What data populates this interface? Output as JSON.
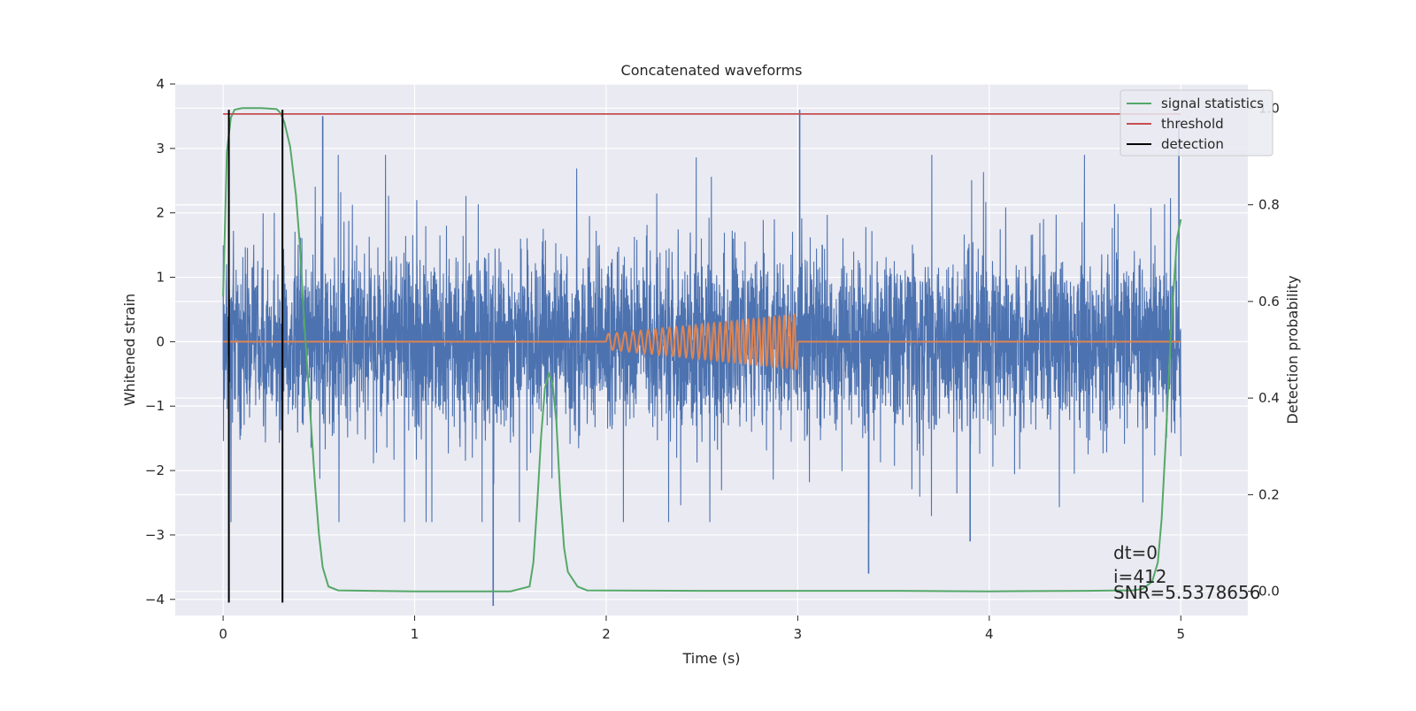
{
  "chart_data": {
    "type": "line",
    "title": "Concatenated waveforms",
    "xlabel": "Time (s)",
    "ylabel": "Whitened strain",
    "y2label": "Detection probability",
    "xlim": [
      -0.25,
      5.35
    ],
    "ylim": [
      -4.25,
      4.0
    ],
    "y2lim": [
      -0.05,
      1.05
    ],
    "xticks": [
      0,
      1,
      2,
      3,
      4,
      5
    ],
    "yticks": [
      -4,
      -3,
      -2,
      -1,
      0,
      1,
      2,
      3,
      4
    ],
    "y2ticks": [
      0.0,
      0.2,
      0.4,
      0.6,
      0.8,
      1.0
    ],
    "xtick_labels": [
      "0",
      "1",
      "2",
      "3",
      "4",
      "5"
    ],
    "ytick_labels": [
      "−4",
      "−3",
      "−2",
      "−1",
      "0",
      "1",
      "2",
      "3",
      "4"
    ],
    "y2tick_labels": [
      "0.0",
      "0.2",
      "0.4",
      "0.6",
      "0.8",
      "1.0"
    ],
    "grid": true,
    "legend_position": "top-right",
    "colors": {
      "noise": "#4c72b0",
      "template": "#dd8452",
      "signal_statistics": "#55a868",
      "threshold": "#c44e52",
      "detection": "#000000",
      "axes_bg": "#eaeaf2",
      "grid": "#ffffff"
    },
    "series": [
      {
        "name": "signal statistics",
        "axis": "right",
        "x": [
          0.0,
          0.02,
          0.04,
          0.06,
          0.1,
          0.2,
          0.28,
          0.3,
          0.32,
          0.35,
          0.38,
          0.4,
          0.42,
          0.45,
          0.48,
          0.5,
          0.52,
          0.55,
          0.6,
          1.0,
          1.5,
          1.6,
          1.62,
          1.64,
          1.66,
          1.68,
          1.7,
          1.72,
          1.74,
          1.76,
          1.78,
          1.8,
          1.85,
          1.9,
          2.5,
          3.0,
          3.5,
          4.0,
          4.5,
          4.75,
          4.8,
          4.85,
          4.88,
          4.9,
          4.92,
          4.95,
          4.98,
          5.0
        ],
        "y": [
          0.61,
          0.91,
          0.98,
          0.997,
          1.0,
          1.0,
          0.998,
          0.99,
          0.97,
          0.92,
          0.82,
          0.72,
          0.58,
          0.4,
          0.22,
          0.12,
          0.05,
          0.01,
          0.002,
          0.0,
          0.0,
          0.01,
          0.06,
          0.18,
          0.32,
          0.42,
          0.45,
          0.43,
          0.35,
          0.2,
          0.09,
          0.04,
          0.01,
          0.002,
          0.001,
          0.001,
          0.001,
          0.0,
          0.001,
          0.002,
          0.005,
          0.02,
          0.06,
          0.15,
          0.3,
          0.55,
          0.73,
          0.77
        ]
      },
      {
        "name": "threshold",
        "axis": "right",
        "x": [
          0.0,
          5.0
        ],
        "y": [
          0.988,
          0.988
        ]
      },
      {
        "name": "detection",
        "axis": "left",
        "segments": [
          {
            "x": 0.03,
            "y": [
              -4.05,
              3.6
            ]
          },
          {
            "x": 0.31,
            "y": [
              -4.05,
              3.6
            ]
          }
        ]
      },
      {
        "name": "",
        "role": "whitened strain (noise + signal)",
        "axis": "left",
        "x_range": [
          0.0,
          5.0
        ],
        "band": [
          -1.5,
          1.7
        ],
        "extremes": {
          "max": 3.6,
          "min": -4.1
        }
      },
      {
        "name": "",
        "role": "injected chirp template",
        "axis": "left",
        "x_range": [
          2.0,
          3.0
        ],
        "amplitude": [
          0.12,
          0.42
        ],
        "zero_line": 0
      }
    ],
    "legend": [
      "signal statistics",
      "threshold",
      "detection"
    ],
    "annotations": [
      "dt=0",
      "i=412",
      "SNR=5.5378656"
    ]
  }
}
